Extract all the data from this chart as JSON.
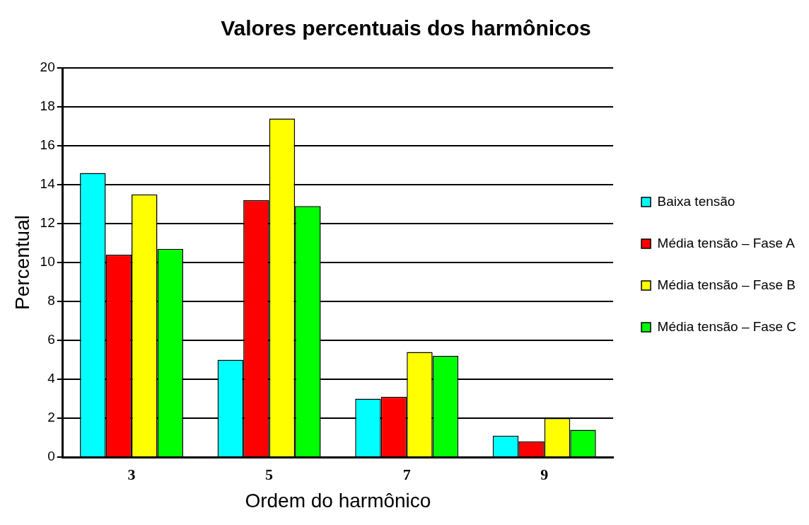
{
  "chart_data": {
    "type": "bar",
    "title": "Valores percentuais dos harmônicos",
    "xlabel": "Ordem do harmônico",
    "ylabel": "Percentual",
    "categories": [
      "3",
      "5",
      "7",
      "9"
    ],
    "series": [
      {
        "name": "Baixa tensão",
        "color": "#00ffff",
        "values": [
          14.6,
          5.0,
          3.0,
          1.1
        ]
      },
      {
        "name": "Média tensão – Fase A",
        "color": "#ff0000",
        "values": [
          10.4,
          13.2,
          3.1,
          0.8
        ]
      },
      {
        "name": "Média tensão – Fase B",
        "color": "#ffff00",
        "values": [
          13.5,
          17.4,
          5.4,
          2.0
        ]
      },
      {
        "name": "Média tensão – Fase C",
        "color": "#00ff00",
        "values": [
          10.7,
          12.9,
          5.2,
          1.4
        ]
      }
    ],
    "ylim": [
      0,
      20
    ],
    "yticks": [
      0,
      2,
      4,
      6,
      8,
      10,
      12,
      14,
      16,
      18,
      20
    ],
    "grid": "y",
    "legend": "right"
  }
}
